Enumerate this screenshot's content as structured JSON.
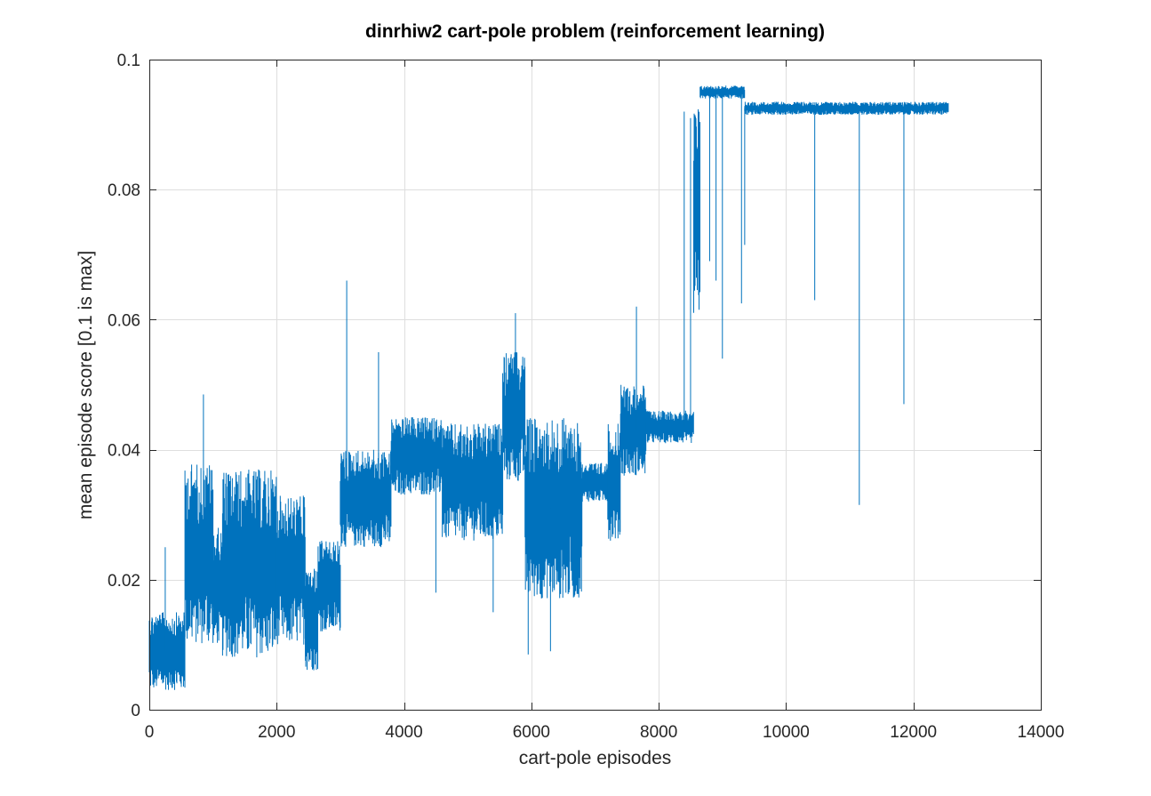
{
  "chart_data": {
    "type": "line",
    "title": "dinrhiw2 cart-pole problem (reinforcement learning)",
    "xlabel": "cart-pole episodes",
    "ylabel": "mean episode score [0.1 is max]",
    "xlim": [
      0,
      14000
    ],
    "ylim": [
      0,
      0.1
    ],
    "xticks": [
      0,
      2000,
      4000,
      6000,
      8000,
      10000,
      12000,
      14000
    ],
    "yticks": [
      0,
      0.02,
      0.04,
      0.06,
      0.08,
      0.1
    ],
    "xtick_labels": [
      "0",
      "2000",
      "4000",
      "6000",
      "8000",
      "10000",
      "12000",
      "14000"
    ],
    "ytick_labels": [
      "0",
      "0.02",
      "0.04",
      "0.06",
      "0.08",
      "0.1"
    ],
    "grid": true,
    "line_color": "#0072BD",
    "x_max_episode": 12550,
    "segments": [
      {
        "x": [
          0,
          560
        ],
        "low": 0.003,
        "high": 0.015
      },
      {
        "x": [
          560,
          1000
        ],
        "low": 0.01,
        "high": 0.038
      },
      {
        "x": [
          1000,
          1150
        ],
        "low": 0.01,
        "high": 0.028
      },
      {
        "x": [
          1150,
          2000
        ],
        "low": 0.008,
        "high": 0.037
      },
      {
        "x": [
          2000,
          2450
        ],
        "low": 0.01,
        "high": 0.033
      },
      {
        "x": [
          2450,
          2650
        ],
        "low": 0.006,
        "high": 0.022
      },
      {
        "x": [
          2650,
          3000
        ],
        "low": 0.012,
        "high": 0.026
      },
      {
        "x": [
          3000,
          3800
        ],
        "low": 0.025,
        "high": 0.04
      },
      {
        "x": [
          3800,
          4600
        ],
        "low": 0.033,
        "high": 0.045
      },
      {
        "x": [
          4600,
          5550
        ],
        "low": 0.026,
        "high": 0.044
      },
      {
        "x": [
          5550,
          5900
        ],
        "low": 0.035,
        "high": 0.055
      },
      {
        "x": [
          5900,
          6800
        ],
        "low": 0.017,
        "high": 0.045
      },
      {
        "x": [
          6800,
          7200
        ],
        "low": 0.032,
        "high": 0.038
      },
      {
        "x": [
          7200,
          7400
        ],
        "low": 0.026,
        "high": 0.044
      },
      {
        "x": [
          7400,
          7800
        ],
        "low": 0.036,
        "high": 0.05
      },
      {
        "x": [
          7800,
          8550
        ],
        "low": 0.041,
        "high": 0.046
      },
      {
        "x": [
          8550,
          8650
        ],
        "low": 0.06,
        "high": 0.093
      },
      {
        "x": [
          8650,
          9350
        ],
        "low": 0.094,
        "high": 0.096
      },
      {
        "x": [
          9350,
          12550
        ],
        "low": 0.0915,
        "high": 0.0935
      }
    ],
    "spikes": [
      {
        "x": 250,
        "y": 0.025
      },
      {
        "x": 850,
        "y": 0.0485
      },
      {
        "x": 3100,
        "y": 0.066
      },
      {
        "x": 3600,
        "y": 0.055
      },
      {
        "x": 4500,
        "y": 0.018
      },
      {
        "x": 5400,
        "y": 0.015
      },
      {
        "x": 5750,
        "y": 0.061
      },
      {
        "x": 5950,
        "y": 0.0085
      },
      {
        "x": 6300,
        "y": 0.009
      },
      {
        "x": 7650,
        "y": 0.062
      },
      {
        "x": 8400,
        "y": 0.092
      },
      {
        "x": 8500,
        "y": 0.091
      },
      {
        "x": 8800,
        "y": 0.069
      },
      {
        "x": 8900,
        "y": 0.066
      },
      {
        "x": 9000,
        "y": 0.054
      },
      {
        "x": 9300,
        "y": 0.0625
      },
      {
        "x": 9350,
        "y": 0.0715
      },
      {
        "x": 10450,
        "y": 0.063
      },
      {
        "x": 11150,
        "y": 0.0315
      },
      {
        "x": 11850,
        "y": 0.047
      }
    ]
  }
}
